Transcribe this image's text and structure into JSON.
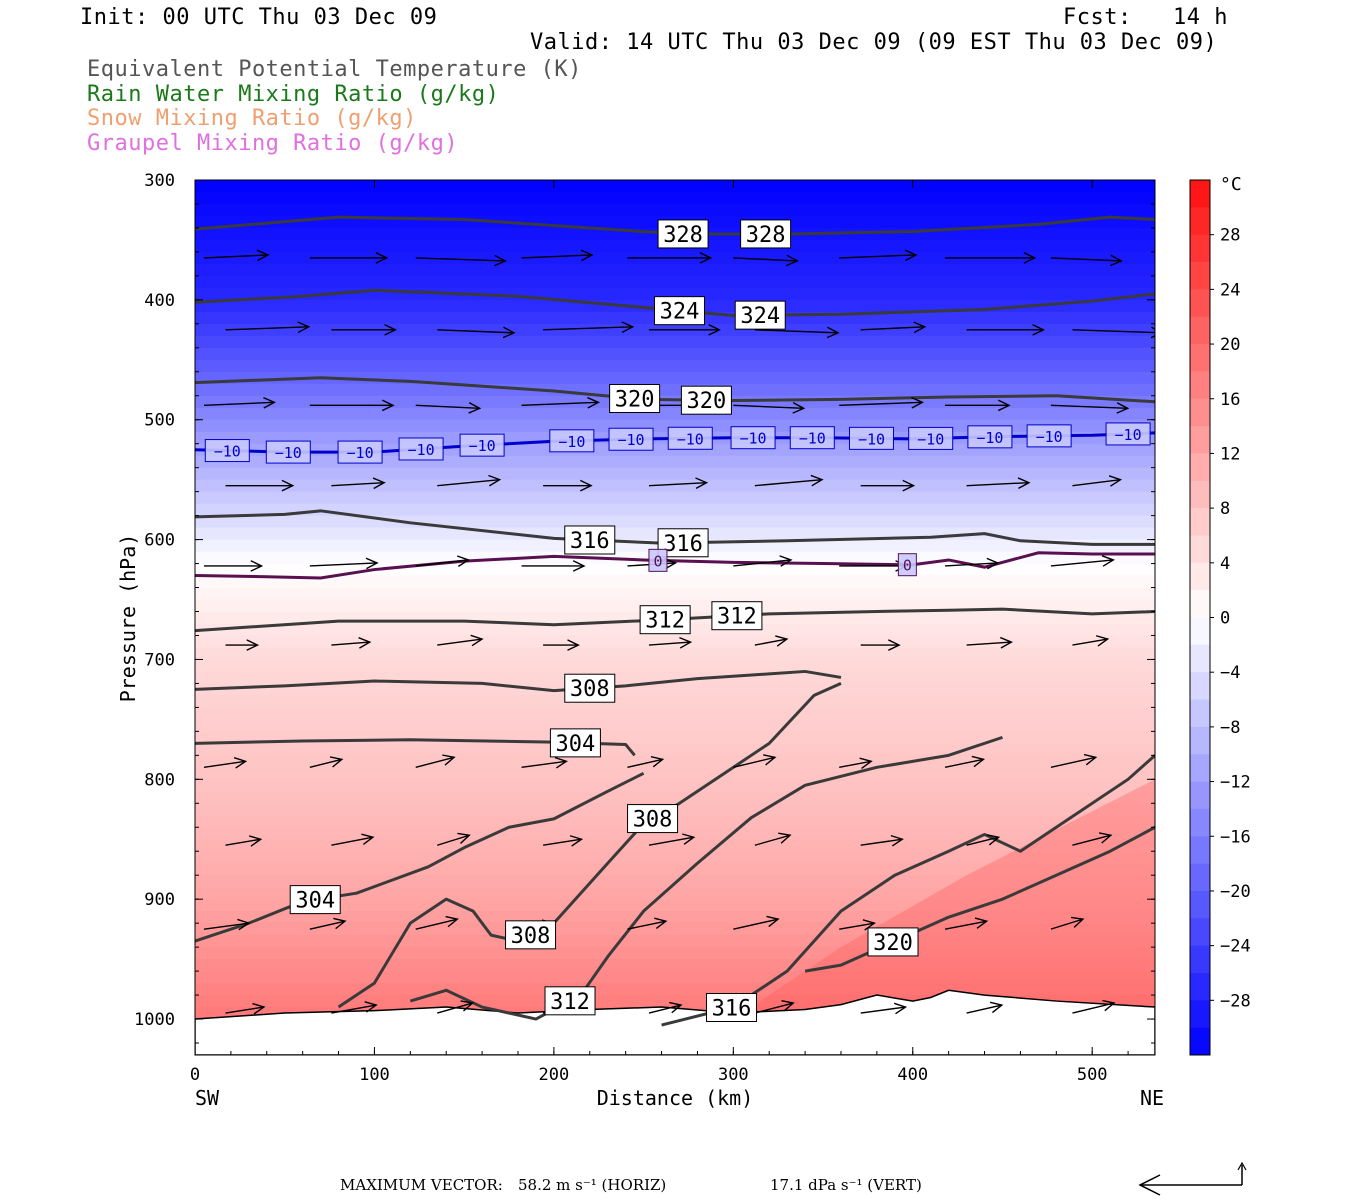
{
  "header": {
    "init": "Init: 00 UTC Thu 03 Dec 09",
    "fcst": "Fcst:   14 h",
    "valid": "Valid: 14 UTC Thu 03 Dec 09 (09 EST Thu 03 Dec 09)",
    "fields": [
      {
        "text": "Equivalent Potential Temperature (K)",
        "color": "#555555"
      },
      {
        "text": "Rain Water Mixing Ratio (g/kg)",
        "color": "#1a7a1a"
      },
      {
        "text": "Snow Mixing Ratio (g/kg)",
        "color": "#f0a070"
      },
      {
        "text": "Graupel Mixing Ratio (g/kg)",
        "color": "#e070e0"
      }
    ]
  },
  "chart_data": {
    "type": "heatmap",
    "title": "",
    "xlabel": "Distance (km)",
    "ylabel": "Pressure (hPa)",
    "x_range": [
      0,
      535
    ],
    "y_range": [
      1030,
      300
    ],
    "x_ticks": [
      0,
      100,
      200,
      300,
      400,
      500
    ],
    "y_ticks": [
      300,
      400,
      500,
      600,
      700,
      800,
      900,
      1000
    ],
    "x_end_labels": {
      "left": "SW",
      "right": "NE"
    },
    "colorbar": {
      "unit": "°C",
      "range": [
        -32,
        32
      ],
      "tick_values": [
        28,
        24,
        20,
        16,
        12,
        8,
        4,
        0,
        -4,
        -8,
        -12,
        -16,
        -20,
        -24,
        -28
      ],
      "tick_labels": [
        "28",
        "24",
        "20",
        "16",
        "12",
        "8",
        "4",
        "0",
        "−4",
        "−8",
        "−12",
        "−16",
        "−20",
        "−24",
        "−28"
      ]
    },
    "temperature_profile": [
      {
        "p": 300,
        "t": -32
      },
      {
        "p": 400,
        "t": -27
      },
      {
        "p": 460,
        "t": -20
      },
      {
        "p": 520,
        "t": -12
      },
      {
        "p": 580,
        "t": -5
      },
      {
        "p": 620,
        "t": 0
      },
      {
        "p": 700,
        "t": 5
      },
      {
        "p": 800,
        "t": 8
      },
      {
        "p": 900,
        "t": 12
      },
      {
        "p": 1000,
        "t": 18
      }
    ],
    "isotherms": [
      {
        "label": "−10",
        "color": "#0000cc",
        "points": [
          [
            0,
            525
          ],
          [
            50,
            527
          ],
          [
            100,
            527
          ],
          [
            150,
            522
          ],
          [
            200,
            518
          ],
          [
            250,
            516
          ],
          [
            300,
            515
          ],
          [
            350,
            515
          ],
          [
            400,
            516
          ],
          [
            450,
            514
          ],
          [
            500,
            513
          ],
          [
            535,
            511
          ]
        ],
        "label_x": [
          18,
          52,
          92,
          126,
          160,
          210,
          243,
          276,
          311,
          344,
          377,
          410,
          443,
          476,
          520
        ]
      },
      {
        "label": "0",
        "color": "#5a1050",
        "points": [
          [
            0,
            630
          ],
          [
            40,
            631
          ],
          [
            70,
            632
          ],
          [
            100,
            625
          ],
          [
            150,
            618
          ],
          [
            200,
            614
          ],
          [
            250,
            617
          ],
          [
            300,
            619
          ],
          [
            350,
            620
          ],
          [
            400,
            621
          ],
          [
            420,
            617
          ],
          [
            440,
            623
          ],
          [
            470,
            611
          ],
          [
            500,
            612
          ],
          [
            535,
            612
          ]
        ],
        "label_x": [
          258,
          397
        ]
      }
    ],
    "theta_e_contours": [
      {
        "label": "328",
        "points": [
          [
            0,
            341
          ],
          [
            80,
            331
          ],
          [
            150,
            333
          ],
          [
            220,
            340
          ],
          [
            270,
            345
          ],
          [
            330,
            345
          ],
          [
            400,
            343
          ],
          [
            470,
            337
          ],
          [
            510,
            331
          ],
          [
            535,
            333
          ]
        ],
        "label_x": [
          272,
          318
        ]
      },
      {
        "label": "324",
        "points": [
          [
            0,
            402
          ],
          [
            60,
            397
          ],
          [
            100,
            392
          ],
          [
            180,
            397
          ],
          [
            240,
            405
          ],
          [
            300,
            413
          ],
          [
            360,
            412
          ],
          [
            440,
            408
          ],
          [
            500,
            401
          ],
          [
            535,
            395
          ]
        ],
        "label_x": [
          270,
          315
        ]
      },
      {
        "label": "320",
        "points": [
          [
            0,
            469
          ],
          [
            70,
            465
          ],
          [
            120,
            468
          ],
          [
            200,
            476
          ],
          [
            250,
            483
          ],
          [
            300,
            484
          ],
          [
            360,
            483
          ],
          [
            420,
            481
          ],
          [
            480,
            480
          ],
          [
            535,
            485
          ]
        ],
        "label_x": [
          245,
          285
        ]
      },
      {
        "label": "316",
        "points": [
          [
            0,
            581
          ],
          [
            50,
            579
          ],
          [
            70,
            576
          ],
          [
            120,
            586
          ],
          [
            200,
            599
          ],
          [
            260,
            603
          ],
          [
            330,
            601
          ],
          [
            410,
            598
          ],
          [
            440,
            595
          ],
          [
            460,
            601
          ],
          [
            500,
            604
          ],
          [
            535,
            604
          ]
        ],
        "label_x": [
          220,
          272
        ]
      },
      {
        "label": "312",
        "points": [
          [
            0,
            676
          ],
          [
            80,
            668
          ],
          [
            150,
            668
          ],
          [
            200,
            671
          ],
          [
            260,
            667
          ],
          [
            320,
            662
          ],
          [
            380,
            660
          ],
          [
            420,
            659
          ],
          [
            450,
            658
          ],
          [
            500,
            662
          ],
          [
            535,
            660
          ]
        ],
        "label_x": [
          262,
          302
        ]
      },
      {
        "label": "308",
        "points": [
          [
            0,
            725
          ],
          [
            50,
            722
          ],
          [
            100,
            718
          ],
          [
            160,
            720
          ],
          [
            200,
            726
          ],
          [
            240,
            722
          ],
          [
            280,
            716
          ],
          [
            320,
            712
          ],
          [
            340,
            710
          ],
          [
            360,
            715
          ]
        ],
        "label_x": [
          220
        ]
      },
      {
        "label": "304",
        "points": [
          [
            0,
            770
          ],
          [
            60,
            768
          ],
          [
            120,
            767
          ],
          [
            200,
            769
          ],
          [
            240,
            771
          ],
          [
            245,
            780
          ]
        ],
        "label_x": [
          212
        ]
      },
      {
        "label": "304",
        "points": [
          [
            0,
            935
          ],
          [
            30,
            920
          ],
          [
            60,
            902
          ],
          [
            90,
            895
          ],
          [
            130,
            873
          ],
          [
            150,
            857
          ],
          [
            175,
            840
          ],
          [
            200,
            833
          ],
          [
            230,
            810
          ],
          [
            250,
            795
          ]
        ],
        "label_x": [
          67
        ]
      },
      {
        "label": "308",
        "points": [
          [
            80,
            990
          ],
          [
            100,
            970
          ],
          [
            120,
            920
          ],
          [
            140,
            900
          ],
          [
            155,
            910
          ],
          [
            165,
            930
          ],
          [
            180,
            935
          ],
          [
            200,
            920
          ],
          [
            230,
            870
          ],
          [
            250,
            837
          ],
          [
            270,
            820
          ],
          [
            300,
            790
          ],
          [
            320,
            770
          ],
          [
            345,
            730
          ],
          [
            360,
            720
          ]
        ],
        "label_x": [
          255,
          187
        ]
      },
      {
        "label": "312",
        "points": [
          [
            120,
            985
          ],
          [
            140,
            976
          ],
          [
            160,
            990
          ],
          [
            190,
            1000
          ],
          [
            215,
            980
          ],
          [
            230,
            948
          ],
          [
            250,
            910
          ],
          [
            280,
            870
          ],
          [
            310,
            832
          ],
          [
            340,
            805
          ],
          [
            380,
            790
          ],
          [
            420,
            780
          ],
          [
            450,
            765
          ]
        ],
        "label_x": [
          209
        ]
      },
      {
        "label": "316",
        "points": [
          [
            260,
            1005
          ],
          [
            300,
            990
          ],
          [
            330,
            960
          ],
          [
            360,
            910
          ],
          [
            390,
            880
          ],
          [
            420,
            860
          ],
          [
            440,
            846
          ],
          [
            460,
            860
          ],
          [
            480,
            840
          ],
          [
            520,
            800
          ],
          [
            535,
            780
          ]
        ],
        "label_x": [
          299
        ]
      },
      {
        "label": "320",
        "points": [
          [
            340,
            960
          ],
          [
            360,
            955
          ],
          [
            390,
            935
          ],
          [
            420,
            915
          ],
          [
            450,
            900
          ],
          [
            480,
            880
          ],
          [
            510,
            860
          ],
          [
            535,
            840
          ]
        ],
        "label_x": [
          389
        ]
      }
    ],
    "wind_vectors": {
      "max_horizontal": "58.2 m s⁻¹ (HORIZ)",
      "max_vertical": "17.1 dPa s⁻¹ (VERT)",
      "rows_pressure_hPa": [
        365,
        425,
        488,
        555,
        622,
        688,
        790,
        855,
        925,
        995
      ]
    },
    "boundary": {
      "label": "terrain",
      "points": [
        [
          0,
          1000
        ],
        [
          50,
          995
        ],
        [
          100,
          993
        ],
        [
          140,
          990
        ],
        [
          180,
          995
        ],
        [
          220,
          992
        ],
        [
          260,
          990
        ],
        [
          300,
          995
        ],
        [
          340,
          992
        ],
        [
          360,
          988
        ],
        [
          380,
          980
        ],
        [
          400,
          985
        ],
        [
          410,
          982
        ],
        [
          420,
          976
        ],
        [
          440,
          980
        ],
        [
          480,
          985
        ],
        [
          535,
          990
        ]
      ]
    }
  },
  "footer": {
    "max_vector_label": "MAXIMUM VECTOR:",
    "horiz_value": "58.2 m s⁻¹ (HORIZ)",
    "vert_value": "17.1 dPa s⁻¹ (VERT)"
  }
}
